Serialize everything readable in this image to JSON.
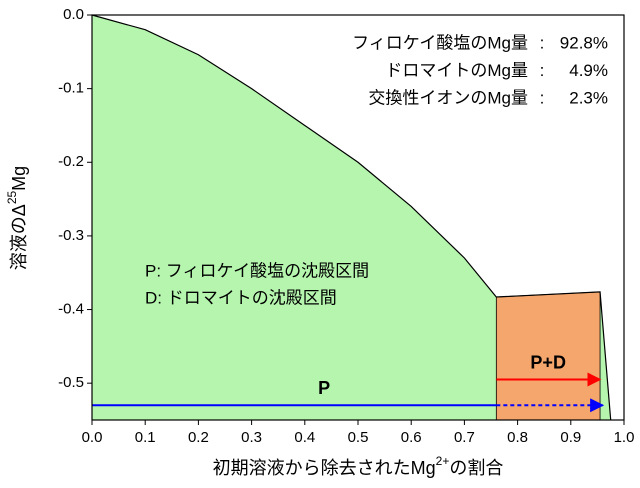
{
  "chart_data": {
    "type": "area",
    "y_label": {
      "text": "溶液のΔ",
      "sup": "25",
      "after": "Mg"
    },
    "x_label": {
      "text": "初期溶液から除去されたMg",
      "sup": "2+",
      "after": "の割合"
    },
    "xlim": [
      0,
      1.0
    ],
    "ylim": [
      -0.55,
      0
    ],
    "xticks": [
      {
        "value": 0,
        "label": "0.0"
      },
      0.1,
      0.2,
      0.3,
      0.4,
      0.5,
      0.6,
      0.7,
      0.8,
      0.9,
      {
        "value": 1.0,
        "label": "1.0"
      }
    ],
    "yticks": [
      {
        "value": 0,
        "label": "0.0"
      },
      -0.1,
      -0.2,
      -0.3,
      -0.4,
      -0.5
    ],
    "series": [
      {
        "color": "#b5f5ae",
        "line_color": "#000000",
        "x": [
          0,
          0.1,
          0.2,
          0.3,
          0.4,
          0.5,
          0.6,
          0.7,
          0.76,
          0.955,
          0.975
        ],
        "values": [
          0,
          -0.02,
          -0.054,
          -0.1,
          -0.15,
          -0.2,
          -0.26,
          -0.33,
          -0.383,
          -0.376,
          -0.55
        ]
      }
    ],
    "regions": [
      {
        "color": "#f4a66c",
        "x": [
          0.76,
          0.955
        ],
        "values": [
          -0.383,
          -0.376
        ]
      }
    ],
    "arrows": [
      {
        "label": "P",
        "color": "#0000ff",
        "x": [
          0,
          0.76
        ],
        "y": -0.53,
        "dashed": false,
        "head": false
      },
      {
        "color": "#0000ff",
        "x": [
          0.76,
          0.96
        ],
        "y": -0.53,
        "dashed": true,
        "head": true
      },
      {
        "label": "P+D",
        "color": "#ff0000",
        "x": [
          0.76,
          0.955
        ],
        "y": -0.495,
        "dashed": false,
        "head": true
      }
    ],
    "notes": [
      {
        "text": "P: フィロケイ酸塩の沈殿区間",
        "color": "#0000ff"
      },
      {
        "text": "D: ドロマイトの沈殿区間",
        "color": "#ff0000"
      }
    ],
    "composition": {
      "separator": ":",
      "items": [
        {
          "label": "フィロケイ酸塩のMg量",
          "amount": "92.8%"
        },
        {
          "label": "ドロマイトのMg量",
          "amount": "4.9%"
        },
        {
          "label": "交換性イオンのMg量",
          "amount": "2.3%"
        }
      ]
    }
  }
}
